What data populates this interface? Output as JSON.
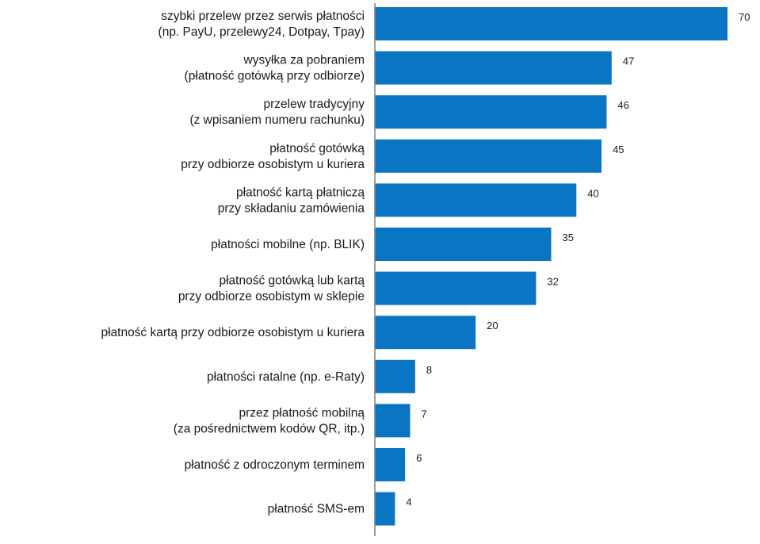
{
  "chart_data": {
    "type": "bar",
    "orientation": "horizontal",
    "bar_color": "#0a75c2",
    "axis_color": "#7f7f7f",
    "xlim": [
      0,
      70
    ],
    "title": "",
    "xlabel": "",
    "ylabel": "",
    "categories": [
      [
        "szybki przelew przez serwis płatności",
        "(np. PayU, przelewy24, Dotpay, Tpay)"
      ],
      [
        "wysyłka za pobraniem",
        "(płatność gotówką przy odbiorze)"
      ],
      [
        "przelew tradycyjny",
        "(z wpisaniem numeru rachunku)"
      ],
      [
        "płatność gotówką",
        "przy odbiorze osobistym u kuriera"
      ],
      [
        "płatność kartą płatniczą",
        "przy składaniu zamówienia"
      ],
      [
        "płatności mobilne (np. BLIK)"
      ],
      [
        "płatność gotówką lub kartą",
        "przy odbiorze osobistym w sklepie"
      ],
      [
        "płatność kartą przy odbiorze osobistym u kuriera"
      ],
      [
        "płatności ratalne (np. e-Raty)"
      ],
      [
        "przez płatność mobilną",
        "(za pośrednictwem kodów QR, itp.)"
      ],
      [
        "płatność z odroczonym terminem"
      ],
      [
        "płatność SMS-em"
      ]
    ],
    "values": [
      70,
      47,
      46,
      45,
      40,
      35,
      32,
      20,
      8,
      7,
      6,
      4
    ]
  }
}
